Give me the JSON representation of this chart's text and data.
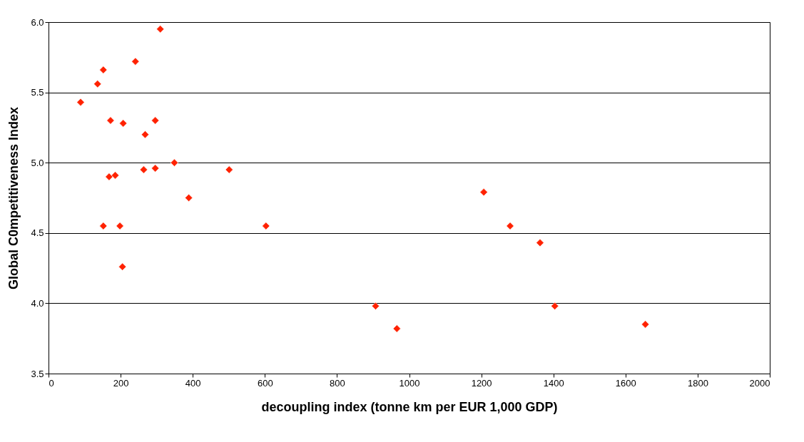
{
  "chart_data": {
    "type": "scatter",
    "xlabel": "decoupling index (tonne km per EUR 1,000 GDP)",
    "ylabel": "Global C0mpetitiveness Index",
    "x": [
      89,
      136,
      152,
      241,
      310,
      172,
      207,
      296,
      268,
      349,
      264,
      296,
      501,
      168,
      185,
      389,
      152,
      198,
      603,
      205,
      1207,
      1280,
      1363,
      907,
      966,
      1404,
      1655
    ],
    "series": [
      {
        "color": "#ff2200",
        "values": [
          5.43,
          5.56,
          5.66,
          5.72,
          5.95,
          5.3,
          5.28,
          5.3,
          5.2,
          5.0,
          4.95,
          4.96,
          4.95,
          4.9,
          4.91,
          4.75,
          4.55,
          4.55,
          4.55,
          4.26,
          4.79,
          4.55,
          4.43,
          3.98,
          3.82,
          3.98,
          3.85
        ]
      }
    ],
    "xlim": [
      0,
      2000
    ],
    "xticks": [
      0,
      200,
      400,
      600,
      800,
      1000,
      1200,
      1400,
      1600,
      1800,
      2000
    ],
    "ylim": [
      3.5,
      6.0
    ],
    "yticks": [
      {
        "value": 3.5,
        "label": "3.5"
      },
      {
        "value": 4.0,
        "label": "4.0"
      },
      {
        "value": 4.5,
        "label": "4.5"
      },
      {
        "value": 5.0,
        "label": "5.0"
      },
      {
        "value": 5.5,
        "label": "5.5"
      },
      {
        "value": 6.0,
        "label": "6.0"
      }
    ],
    "grid": "y",
    "marker": "diamond"
  }
}
